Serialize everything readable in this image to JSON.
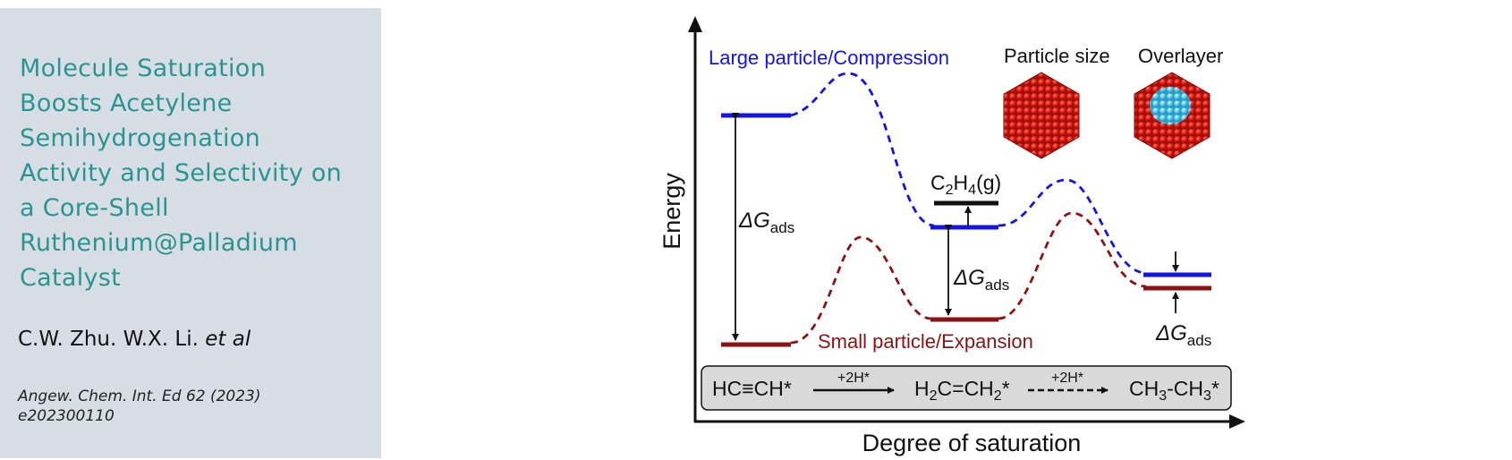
{
  "card": {
    "title_lines": [
      "Molecule Saturation",
      "Boosts Acetylene",
      "Semihydrogenation",
      "Activity and Selectivity on",
      "a Core-Shell",
      "Ruthenium@Palladium",
      "Catalyst"
    ],
    "authors_prefix": "C.W. Zhu. W.X. Li.",
    "authors_etal": "et al",
    "citation_lines": [
      "Angew. Chem. Int. Ed 62 (2023)",
      "e202300110"
    ]
  },
  "diagram": {
    "y_axis_label": "Energy",
    "x_axis_label": "Degree of saturation",
    "large_label": "Large particle/Compression",
    "small_label": "Small particle/Expansion",
    "particle_size_label": "Particle size",
    "overlayer_label": "Overlayer",
    "dg_symbol": "ΔG",
    "dg_subscript": "ads",
    "c2h4_main": "C",
    "c2h4_sub1": "2",
    "c2h4_mid": "H",
    "c2h4_sub2": "4",
    "c2h4_end": "(g)",
    "reaction": {
      "reactant": "HC≡CH*",
      "step1": "+2H*",
      "intermediate_a": "H",
      "intermediate_sub1": "2",
      "intermediate_b": "C=CH",
      "intermediate_sub2": "2",
      "intermediate_c": "*",
      "step2": "+2H*",
      "product_a": "CH",
      "product_sub1": "3",
      "product_b": "-CH",
      "product_sub2": "3",
      "product_c": "*"
    },
    "colors": {
      "blue": "#1515e0",
      "red": "#8c1313",
      "black": "#111111"
    }
  }
}
